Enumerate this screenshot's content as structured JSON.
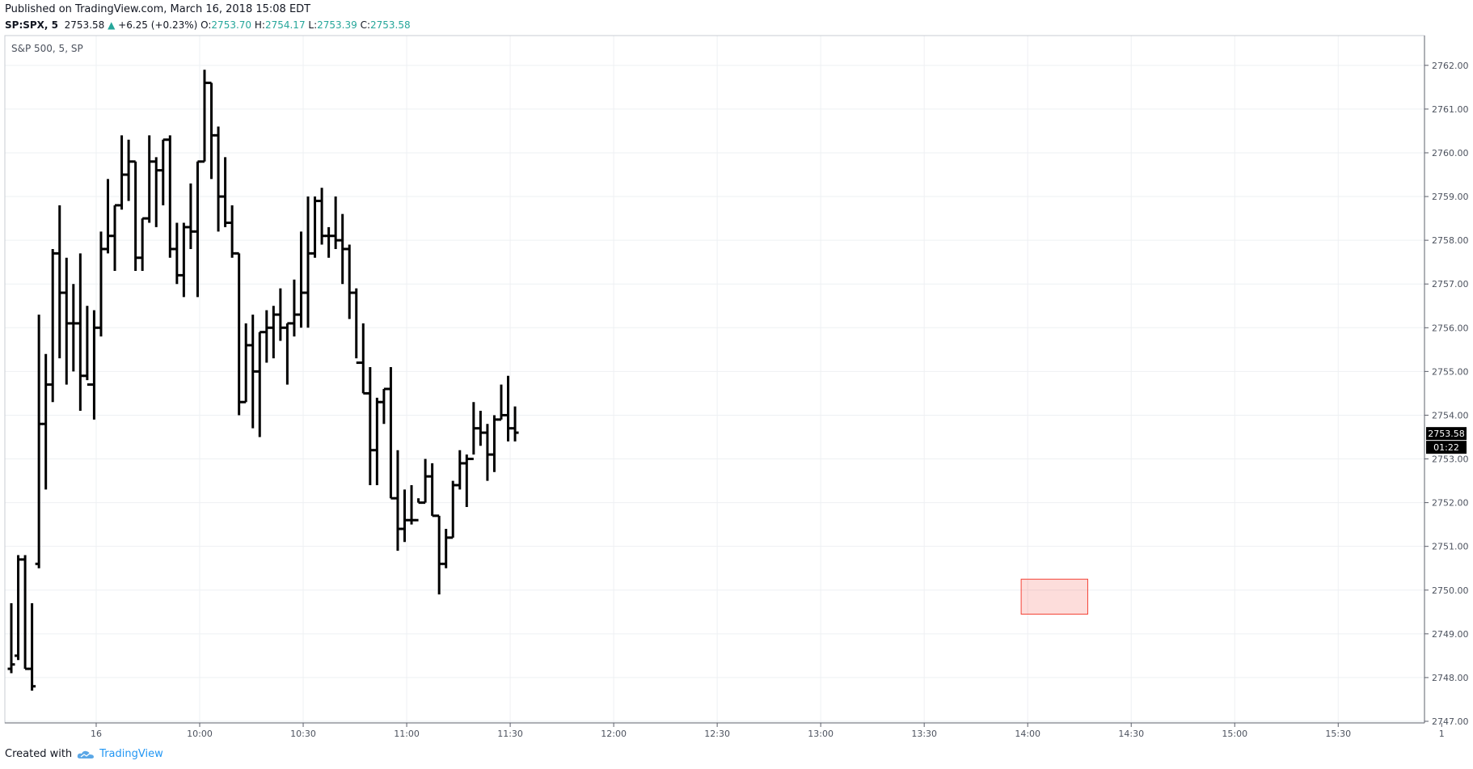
{
  "header": {
    "published": "Published on TradingView.com, March 16, 2018 15:08 EDT",
    "symbol": "SP:SPX, 5",
    "last": "2753.58",
    "change": "+6.25 (+0.23%)",
    "o_label": "O:",
    "o_value": "2753.70",
    "h_label": "H:",
    "h_value": "2754.17",
    "l_label": "L:",
    "l_value": "2753.39",
    "c_label": "C:",
    "c_value": "2753.58"
  },
  "footer": {
    "created": "Created with",
    "brand": "TradingView"
  },
  "colors": {
    "bars": "#000000",
    "grid": "#eef0f3",
    "highlight": "#f44336",
    "price_label": "#000000"
  },
  "chart_data": {
    "type": "ohlc",
    "legend_text": "S&P 500, 5, SP",
    "ylim": [
      2747,
      2762.2
    ],
    "y_ticks": [
      2747,
      2748,
      2749,
      2750,
      2751,
      2752,
      2753,
      2754,
      2755,
      2756,
      2757,
      2758,
      2759,
      2760,
      2761,
      2762
    ],
    "y_tick_labels": [
      "2747.00",
      "2748.00",
      "2749.00",
      "2750.00",
      "2751.00",
      "2752.00",
      "2753.00",
      "2754.00",
      "2755.00",
      "2756.00",
      "2757.00",
      "2758.00",
      "2759.00",
      "2760.00",
      "2761.00",
      "2762.00"
    ],
    "x_ticks": [
      {
        "label": "16",
        "bar": 12.3
      },
      {
        "label": "10:00",
        "bar": 27.3
      },
      {
        "label": "10:30",
        "bar": 42.3
      },
      {
        "label": "11:00",
        "bar": 57.3
      },
      {
        "label": "11:30",
        "bar": 72.3
      },
      {
        "label": "12:00",
        "bar": 87.3
      },
      {
        "label": "12:30",
        "bar": 102.3
      },
      {
        "label": "13:00",
        "bar": 117.3
      },
      {
        "label": "13:30",
        "bar": 132.3
      },
      {
        "label": "14:00",
        "bar": 147.3
      },
      {
        "label": "14:30",
        "bar": 162.3
      },
      {
        "label": "15:00",
        "bar": 177.3
      },
      {
        "label": "15:30",
        "bar": 192.3
      },
      {
        "label": "1",
        "bar": 207.3
      }
    ],
    "last_price_label": "2753.58",
    "countdown_label": "01:22",
    "highlight_box": {
      "bar_from": 146,
      "bar_to": 156,
      "y_from": 2749.45,
      "y_to": 2750.25
    },
    "bars": [
      [
        2748.2,
        2749.7,
        2748.1,
        2748.3
      ],
      [
        2748.5,
        2750.8,
        2748.4,
        2750.7
      ],
      [
        2750.7,
        2750.8,
        2748.2,
        2748.2
      ],
      [
        2748.2,
        2749.7,
        2747.7,
        2747.8
      ],
      [
        2750.6,
        2756.3,
        2750.5,
        2753.8
      ],
      [
        2753.8,
        2755.4,
        2752.3,
        2754.7
      ],
      [
        2754.7,
        2757.8,
        2754.3,
        2757.7
      ],
      [
        2757.7,
        2758.8,
        2755.3,
        2756.8
      ],
      [
        2756.8,
        2757.6,
        2754.7,
        2756.1
      ],
      [
        2756.1,
        2757.0,
        2755.0,
        2756.1
      ],
      [
        2756.1,
        2757.7,
        2754.1,
        2754.9
      ],
      [
        2754.9,
        2756.5,
        2754.8,
        2754.7
      ],
      [
        2754.7,
        2756.4,
        2753.9,
        2756.0
      ],
      [
        2756.0,
        2758.2,
        2755.8,
        2757.8
      ],
      [
        2757.8,
        2759.4,
        2757.7,
        2758.1
      ],
      [
        2758.1,
        2758.8,
        2757.3,
        2758.8
      ],
      [
        2758.8,
        2760.4,
        2758.7,
        2759.5
      ],
      [
        2759.5,
        2760.3,
        2758.9,
        2759.8
      ],
      [
        2759.8,
        2759.8,
        2757.3,
        2757.6
      ],
      [
        2757.6,
        2758.5,
        2757.3,
        2758.5
      ],
      [
        2758.5,
        2760.4,
        2758.4,
        2759.8
      ],
      [
        2759.8,
        2759.9,
        2758.3,
        2759.6
      ],
      [
        2759.6,
        2760.3,
        2758.8,
        2760.3
      ],
      [
        2760.3,
        2760.4,
        2757.6,
        2757.8
      ],
      [
        2757.8,
        2758.4,
        2757.0,
        2757.2
      ],
      [
        2757.2,
        2758.4,
        2756.7,
        2758.3
      ],
      [
        2758.3,
        2759.3,
        2757.8,
        2758.2
      ],
      [
        2758.2,
        2759.8,
        2756.7,
        2759.8
      ],
      [
        2759.8,
        2761.9,
        2759.8,
        2761.6
      ],
      [
        2761.6,
        2761.6,
        2759.4,
        2760.4
      ],
      [
        2760.4,
        2760.6,
        2758.2,
        2759.0
      ],
      [
        2759.0,
        2759.9,
        2758.3,
        2758.4
      ],
      [
        2758.4,
        2758.8,
        2757.6,
        2757.7
      ],
      [
        2757.7,
        2757.7,
        2754.0,
        2754.3
      ],
      [
        2754.3,
        2756.1,
        2754.3,
        2755.6
      ],
      [
        2755.6,
        2756.3,
        2753.7,
        2755.0
      ],
      [
        2755.0,
        2755.9,
        2753.5,
        2755.9
      ],
      [
        2755.9,
        2756.4,
        2755.2,
        2756.0
      ],
      [
        2756.0,
        2756.5,
        2755.3,
        2756.3
      ],
      [
        2756.3,
        2756.9,
        2755.7,
        2756.0
      ],
      [
        2756.0,
        2756.1,
        2754.7,
        2756.1
      ],
      [
        2756.1,
        2757.1,
        2755.8,
        2756.3
      ],
      [
        2756.3,
        2758.2,
        2756.0,
        2756.8
      ],
      [
        2756.8,
        2759.0,
        2756.0,
        2757.7
      ],
      [
        2757.7,
        2759.0,
        2757.6,
        2758.9
      ],
      [
        2758.9,
        2759.2,
        2757.9,
        2758.1
      ],
      [
        2758.1,
        2758.3,
        2757.6,
        2758.1
      ],
      [
        2758.1,
        2759.0,
        2757.8,
        2758.0
      ],
      [
        2758.0,
        2758.6,
        2757.0,
        2757.8
      ],
      [
        2757.8,
        2757.9,
        2756.2,
        2756.8
      ],
      [
        2756.8,
        2756.9,
        2755.3,
        2755.2
      ],
      [
        2755.2,
        2756.1,
        2754.5,
        2754.5
      ],
      [
        2754.5,
        2755.1,
        2752.4,
        2753.2
      ],
      [
        2753.2,
        2754.4,
        2752.4,
        2754.3
      ],
      [
        2754.3,
        2754.6,
        2753.8,
        2754.6
      ],
      [
        2754.6,
        2755.1,
        2752.1,
        2752.1
      ],
      [
        2752.1,
        2753.2,
        2750.9,
        2751.4
      ],
      [
        2751.4,
        2752.3,
        2751.1,
        2751.6
      ],
      [
        2751.6,
        2752.4,
        2751.5,
        2751.6
      ],
      [
        2751.6,
        2752.1,
        2752.0,
        2752.0
      ],
      [
        2752.0,
        2753.0,
        2752.0,
        2752.6
      ],
      [
        2752.6,
        2752.9,
        2751.7,
        2751.7
      ],
      [
        2751.7,
        2751.7,
        2749.9,
        2750.6
      ],
      [
        2750.6,
        2751.4,
        2750.5,
        2751.2
      ],
      [
        2751.2,
        2752.5,
        2751.2,
        2752.4
      ],
      [
        2752.4,
        2753.2,
        2752.3,
        2752.9
      ],
      [
        2752.9,
        2753.1,
        2751.9,
        2753.0
      ],
      [
        2753.0,
        2754.3,
        2753.1,
        2753.7
      ],
      [
        2753.7,
        2754.1,
        2753.3,
        2753.6
      ],
      [
        2753.6,
        2753.8,
        2752.5,
        2753.1
      ],
      [
        2753.1,
        2754.0,
        2752.7,
        2753.9
      ],
      [
        2753.9,
        2754.7,
        2753.9,
        2754.0
      ],
      [
        2754.0,
        2754.9,
        2753.4,
        2753.7
      ],
      [
        2753.7,
        2754.2,
        2753.4,
        2753.6
      ]
    ]
  }
}
